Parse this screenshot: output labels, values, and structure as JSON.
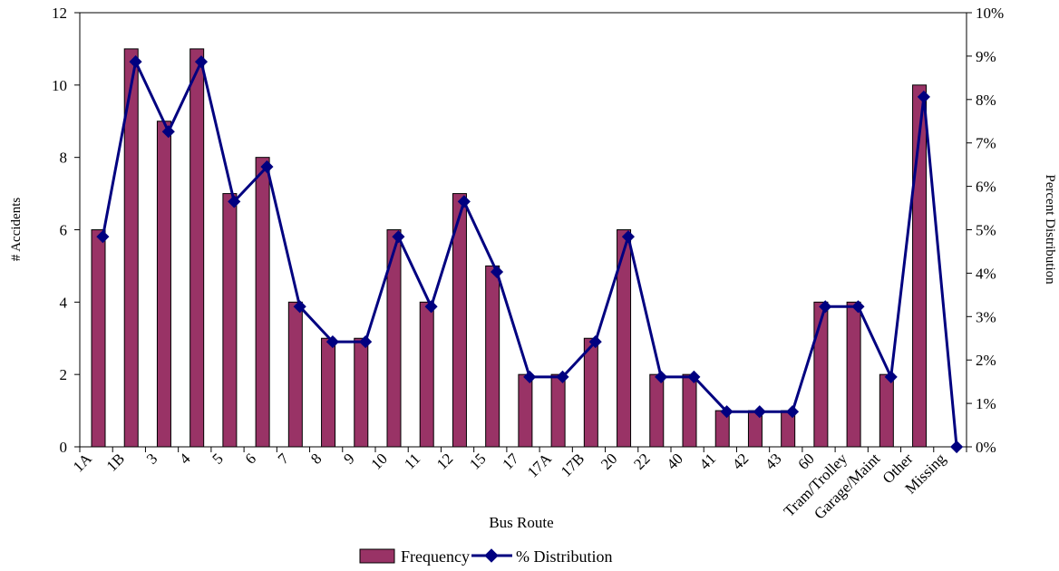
{
  "chart_data": {
    "type": "bar",
    "categories": [
      "1A",
      "1B",
      "3",
      "4",
      "5",
      "6",
      "7",
      "8",
      "9",
      "10",
      "11",
      "12",
      "15",
      "17",
      "17A",
      "17B",
      "20",
      "22",
      "40",
      "41",
      "42",
      "43",
      "60",
      "Tram/Trolley",
      "Garage/Maint",
      "Other",
      "Missing"
    ],
    "series": [
      {
        "name": "Frequency",
        "type": "bar",
        "axis": "left",
        "color": "#993366",
        "values": [
          6,
          11,
          9,
          11,
          7,
          8,
          4,
          3,
          3,
          6,
          4,
          7,
          5,
          2,
          2,
          3,
          6,
          2,
          2,
          1,
          1,
          1,
          4,
          4,
          2,
          10,
          null
        ]
      },
      {
        "name": "% Distribution",
        "type": "line",
        "axis": "right",
        "color": "#000080",
        "values": [
          4.84,
          8.87,
          7.26,
          8.87,
          5.65,
          6.45,
          3.23,
          2.42,
          2.42,
          4.84,
          3.23,
          5.65,
          4.03,
          1.61,
          1.61,
          2.42,
          4.84,
          1.61,
          1.61,
          0.81,
          0.81,
          0.81,
          3.23,
          3.23,
          1.61,
          8.06,
          0
        ]
      }
    ],
    "xlabel": "Bus Route",
    "ylabel": "# Accidents",
    "y2label": "Percent Distribution",
    "ylim": [
      0,
      12
    ],
    "y2lim": [
      0,
      10
    ],
    "yticks": [
      "0",
      "2",
      "4",
      "6",
      "8",
      "10",
      "12"
    ],
    "y2ticks": [
      "0%",
      "1%",
      "2%",
      "3%",
      "4%",
      "5%",
      "6%",
      "7%",
      "8%",
      "9%",
      "10%"
    ],
    "grid": false,
    "legend": "bottom"
  }
}
